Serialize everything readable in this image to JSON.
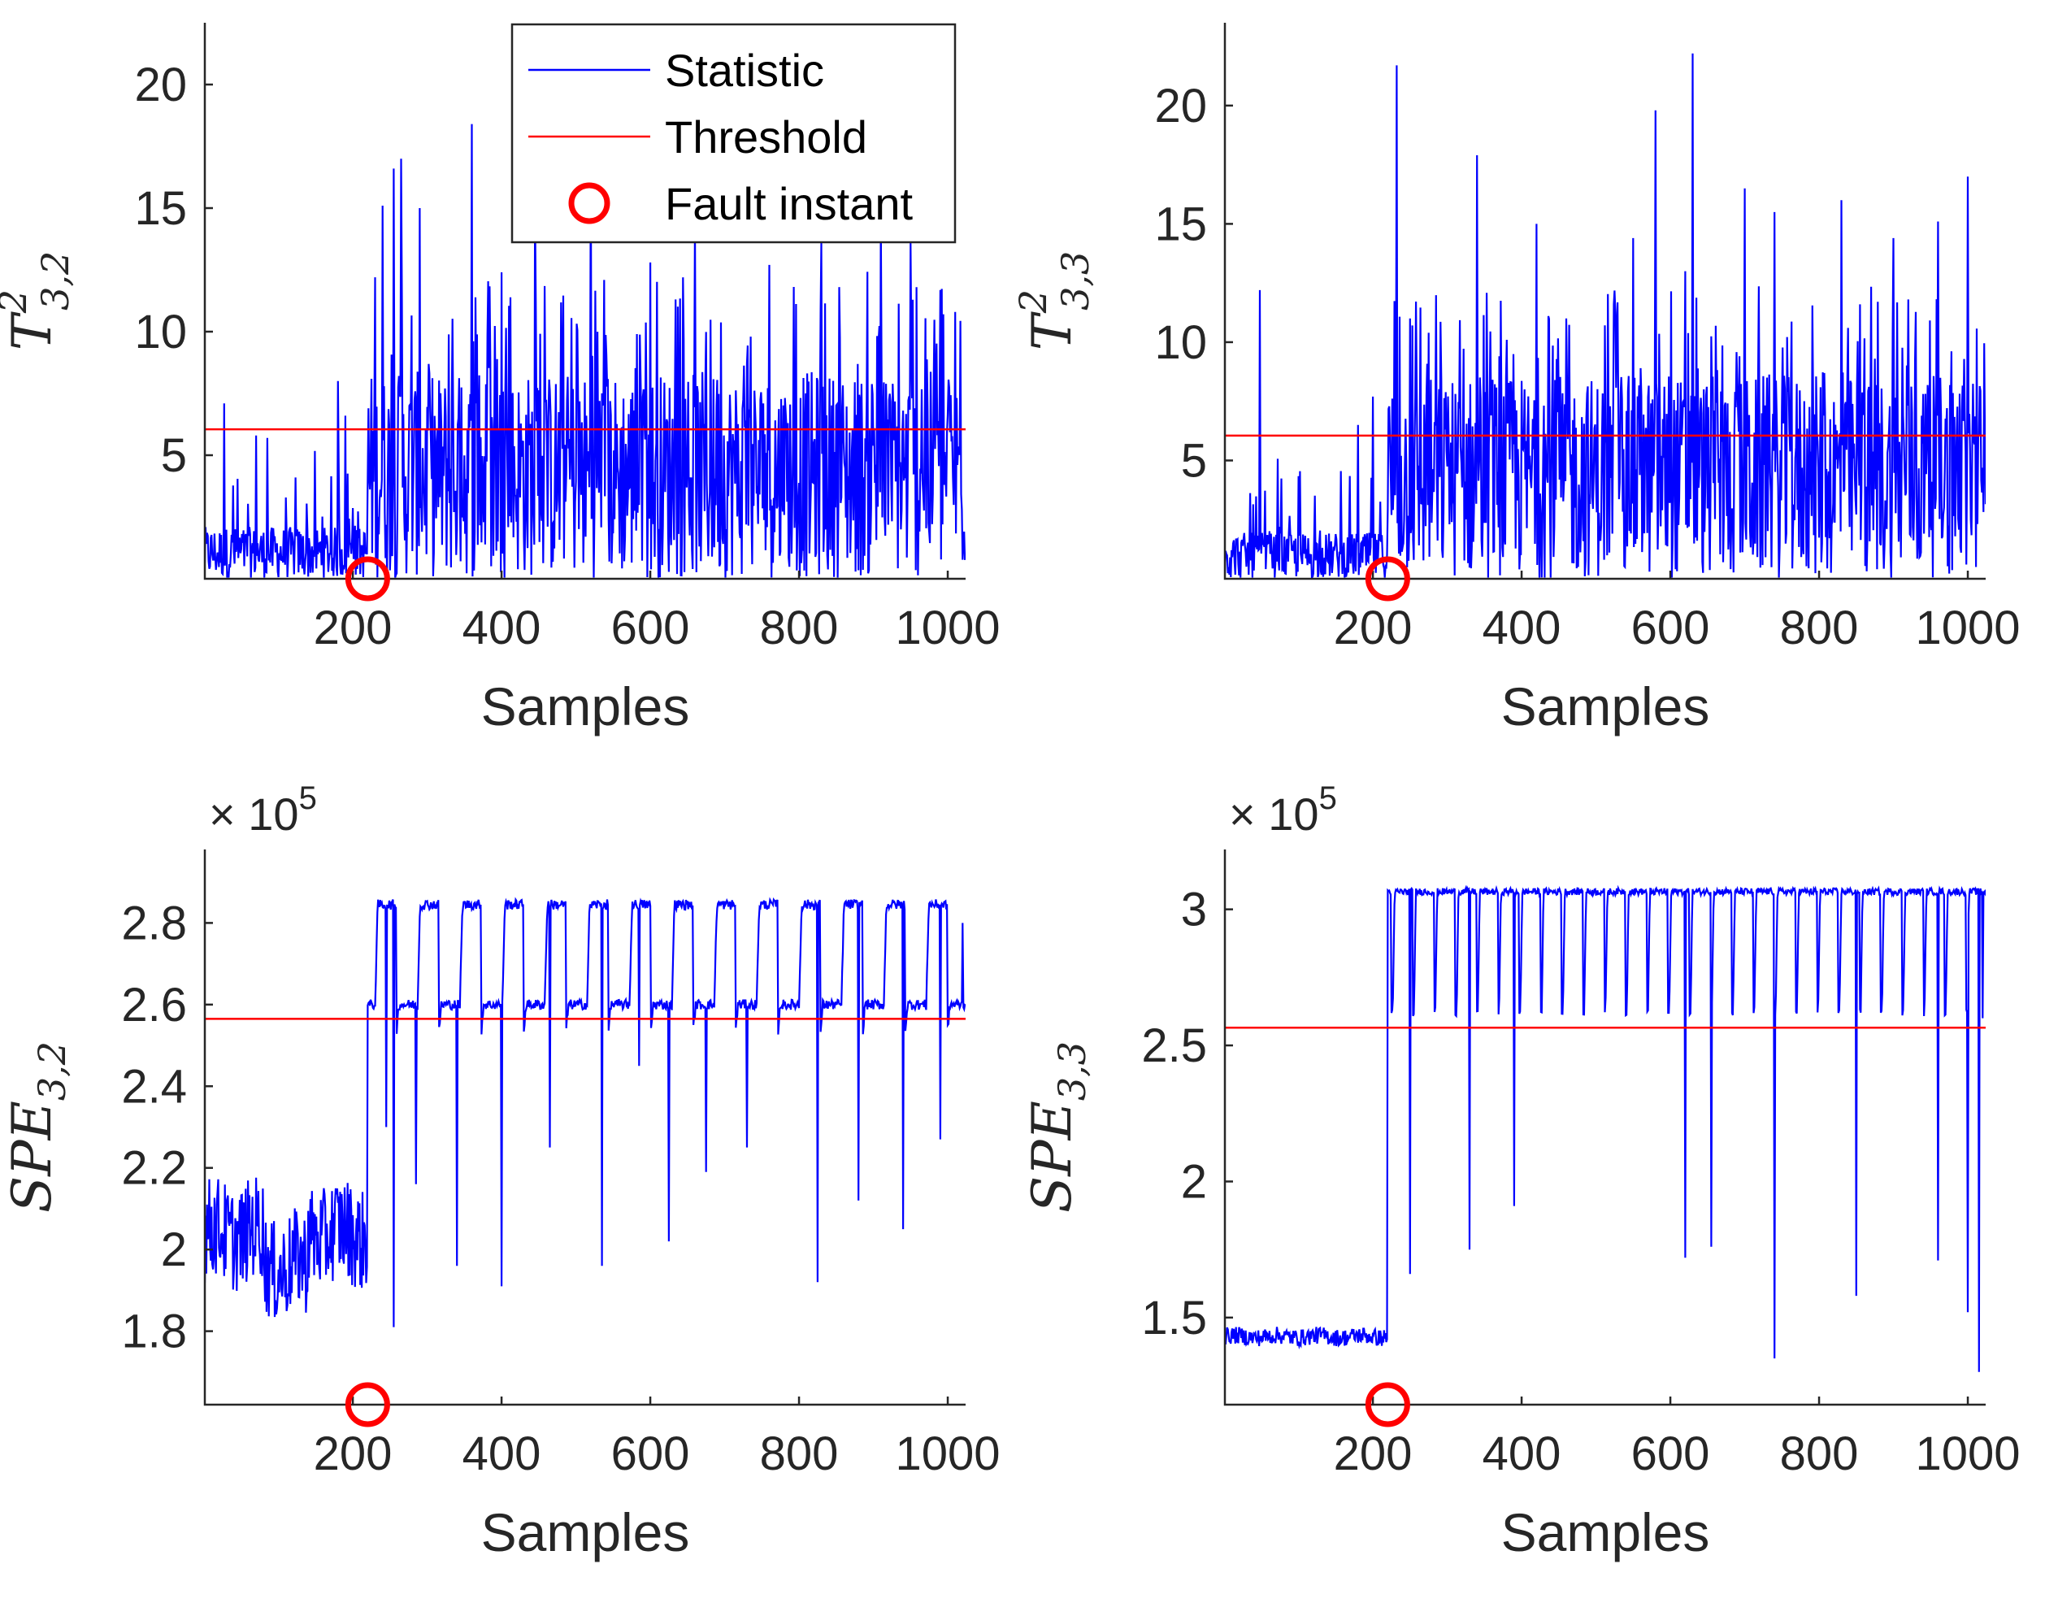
{
  "colors": {
    "statistic": "#0000ff",
    "threshold": "#ff0000",
    "fault": "#ff0000",
    "axes": "#262626"
  },
  "legend": {
    "placement": "top-right",
    "entries": [
      {
        "label": "Statistic",
        "marker": "line"
      },
      {
        "label": "Threshold",
        "marker": "line"
      },
      {
        "label": "Fault instant",
        "marker": "circle"
      }
    ]
  },
  "chart_data": [
    {
      "id": "t2-32",
      "type": "line",
      "ylabel": {
        "main": "T",
        "sup": "2",
        "sub": "3,2"
      },
      "xlabel": "Samples",
      "xlim": [
        1,
        1024
      ],
      "ylim": [
        0,
        22.5
      ],
      "xticks": [
        200,
        400,
        600,
        800,
        1000
      ],
      "yticks": [
        5,
        10,
        15,
        20
      ],
      "exponent": null,
      "threshold": 6.05,
      "fault_instant": 220,
      "series": [
        {
          "signal": "t2",
          "before_level": 1.4,
          "after_level": 4.2,
          "spikes": [
            [
              27,
              7.1
            ],
            [
              70,
              5.8
            ],
            [
              85,
              5.7
            ],
            [
              180,
              8.0
            ],
            [
              190,
              6.6
            ],
            [
              230,
              12.2
            ],
            [
              240,
              15.1
            ],
            [
              255,
              16.6
            ],
            [
              265,
              17.0
            ],
            [
              290,
              15.0
            ],
            [
              360,
              18.4
            ],
            [
              400,
              12.4
            ],
            [
              445,
              15.2
            ],
            [
              520,
              17.3
            ],
            [
              600,
              12.8
            ],
            [
              660,
              14.5
            ],
            [
              760,
              12.7
            ],
            [
              830,
              13.6
            ],
            [
              910,
              14.8
            ],
            [
              950,
              13.6
            ],
            [
              1010,
              10.8
            ]
          ]
        }
      ]
    },
    {
      "id": "t2-33",
      "type": "line",
      "ylabel": {
        "main": "T",
        "sup": "2",
        "sub": "3,3"
      },
      "xlabel": "Samples",
      "xlim": [
        1,
        1024
      ],
      "ylim": [
        0,
        23.5
      ],
      "xticks": [
        200,
        400,
        600,
        800,
        1000
      ],
      "yticks": [
        5,
        10,
        15,
        20
      ],
      "exponent": null,
      "threshold": 6.05,
      "fault_instant": 220,
      "series": [
        {
          "signal": "t2",
          "before_level": 1.3,
          "after_level": 4.3,
          "spikes": [
            [
              48,
              12.2
            ],
            [
              180,
              6.5
            ],
            [
              200,
              7.7
            ],
            [
              232,
              21.7
            ],
            [
              250,
              11.0
            ],
            [
              340,
              17.9
            ],
            [
              380,
              10.1
            ],
            [
              420,
              15.0
            ],
            [
              460,
              11.0
            ],
            [
              550,
              14.4
            ],
            [
              580,
              19.8
            ],
            [
              620,
              13.0
            ],
            [
              630,
              22.2
            ],
            [
              700,
              16.5
            ],
            [
              740,
              15.5
            ],
            [
              830,
              16.0
            ],
            [
              900,
              14.4
            ],
            [
              960,
              15.1
            ],
            [
              1000,
              17.0
            ]
          ]
        }
      ]
    },
    {
      "id": "spe-32",
      "type": "line",
      "ylabel": {
        "main": "SPE",
        "sup": "",
        "sub": "3,2"
      },
      "xlabel": "Samples",
      "xlim": [
        1,
        1024
      ],
      "ylim": [
        162000,
        298000
      ],
      "xticks": [
        200,
        400,
        600,
        800,
        1000
      ],
      "yticks": [
        180000,
        200000,
        220000,
        240000,
        260000,
        280000
      ],
      "ytick_labels": [
        "1.8",
        "2",
        "2.2",
        "2.4",
        "2.6",
        "2.8"
      ],
      "exponent": "5",
      "threshold": 256500,
      "fault_instant": 220,
      "series": [
        {
          "signal": "spe",
          "period": 57,
          "offset": 230,
          "before_level": 204000,
          "before_noise": 28000,
          "high": 284500,
          "mid": 260000,
          "spikes": [
            [
              245,
              230000
            ],
            [
              255,
              181000
            ],
            [
              285,
              216000
            ],
            [
              340,
              196000
            ],
            [
              400,
              191000
            ],
            [
              465,
              225000
            ],
            [
              535,
              196000
            ],
            [
              585,
              245000
            ],
            [
              625,
              202000
            ],
            [
              675,
              219000
            ],
            [
              730,
              225000
            ],
            [
              825,
              192000
            ],
            [
              880,
              212000
            ],
            [
              940,
              205000
            ],
            [
              990,
              227000
            ],
            [
              1020,
              280000
            ]
          ]
        }
      ]
    },
    {
      "id": "spe-33",
      "type": "line",
      "ylabel": {
        "main": "SPE",
        "sup": "",
        "sub": "3,3"
      },
      "xlabel": "Samples",
      "xlim": [
        1,
        1024
      ],
      "ylim": [
        118000,
        322000
      ],
      "xticks": [
        200,
        400,
        600,
        800,
        1000
      ],
      "yticks": [
        150000,
        200000,
        250000,
        300000
      ],
      "ytick_labels": [
        "1.5",
        "2",
        "2.5",
        "3"
      ],
      "exponent": "5",
      "threshold": 256500,
      "fault_instant": 220,
      "series": [
        {
          "signal": "spe",
          "period": 28.6,
          "offset": 225,
          "before_level": 143000,
          "before_noise": 7000,
          "high": 306500,
          "mid": 0,
          "spikes": [
            [
              250,
              166000
            ],
            [
              330,
              175000
            ],
            [
              390,
              191000
            ],
            [
              620,
              172000
            ],
            [
              655,
              176000
            ],
            [
              740,
              135000
            ],
            [
              850,
              158000
            ],
            [
              960,
              171000
            ],
            [
              1000,
              152000
            ],
            [
              1015,
              130000
            ],
            [
              1020,
              260000
            ]
          ]
        }
      ]
    }
  ]
}
